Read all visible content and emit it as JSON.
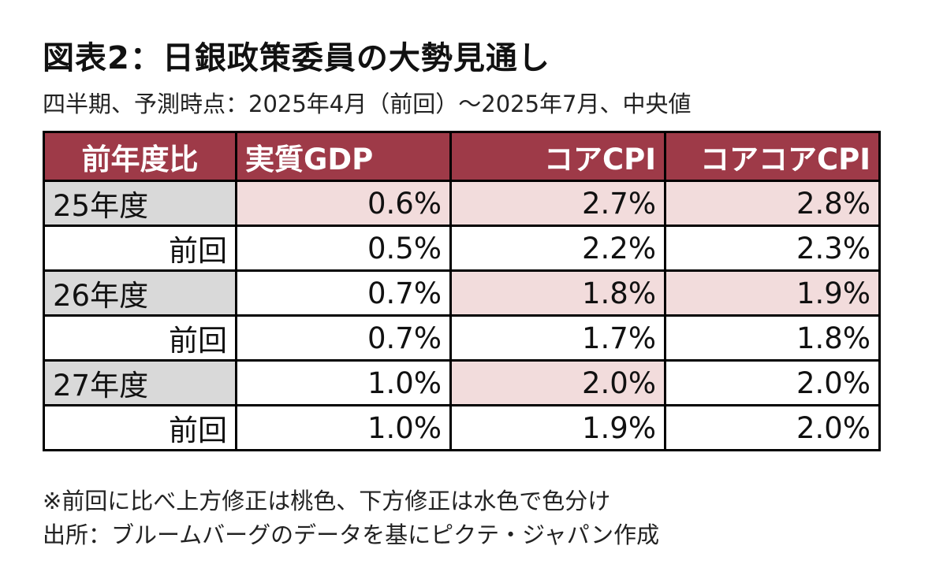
{
  "title": "図表2：日銀政策委員の大勢見通し",
  "subtitle": "四半期、予測時点：2025年4月（前回）～2025年7月、中央値",
  "colors": {
    "header_bg": "#9e3a48",
    "upward_revision": "#f2dcdc",
    "year_label_bg": "#d9d9d9"
  },
  "table": {
    "headers": [
      "前年度比",
      "実質GDP",
      "コアCPI",
      "コアコアCPI"
    ],
    "rows": [
      {
        "label": "25年度",
        "gdp": "0.6%",
        "core_cpi": "2.7%",
        "core_core_cpi": "2.8%"
      },
      {
        "label": "前回",
        "gdp": "0.5%",
        "core_cpi": "2.2%",
        "core_core_cpi": "2.3%"
      },
      {
        "label": "26年度",
        "gdp": "0.7%",
        "core_cpi": "1.8%",
        "core_core_cpi": "1.9%"
      },
      {
        "label": "前回",
        "gdp": "0.7%",
        "core_cpi": "1.7%",
        "core_core_cpi": "1.8%"
      },
      {
        "label": "27年度",
        "gdp": "1.0%",
        "core_cpi": "2.0%",
        "core_core_cpi": "2.0%"
      },
      {
        "label": "前回",
        "gdp": "1.0%",
        "core_cpi": "1.9%",
        "core_core_cpi": "2.0%"
      }
    ]
  },
  "notes": {
    "note1": "※前回に比べ上方修正は桃色、下方修正は水色で色分け",
    "source": "出所：ブルームバーグのデータを基にピクテ・ジャパン作成"
  }
}
